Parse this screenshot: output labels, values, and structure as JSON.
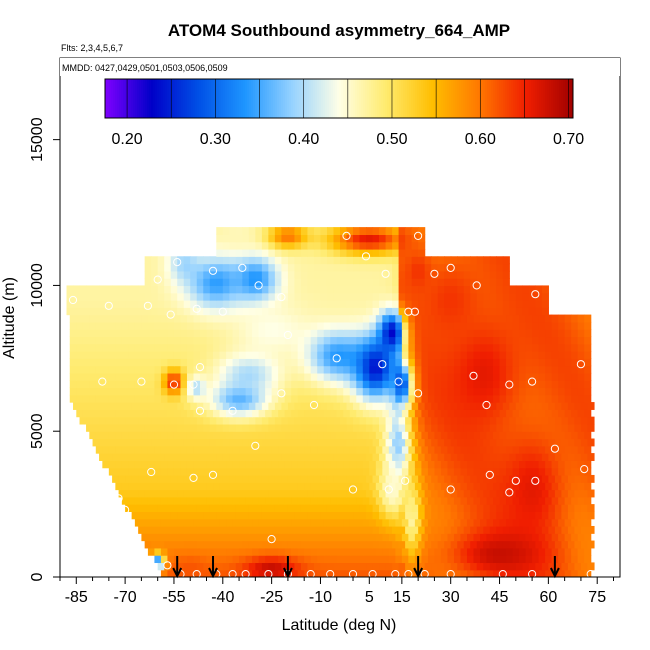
{
  "chart_data": {
    "type": "heatmap",
    "title": "ATOM4 Southbound asymmetry_664_AMP",
    "flights_label": "Flts: 2,3,4,5,6,7",
    "mmdd_label": "MMDD: 0427,0429,0501,0503,0506,0509",
    "xlabel": "Latitude (deg N)",
    "ylabel": "Altitude (m)",
    "xlim": [
      -90,
      82
    ],
    "ylim": [
      0,
      17800
    ],
    "x_ticks": [
      -85,
      -70,
      -55,
      -40,
      -25,
      -10,
      5,
      15,
      30,
      45,
      60,
      75
    ],
    "x_tick_labels": [
      "-85",
      "-70",
      "-55",
      "-40",
      "-25",
      "-10",
      "5",
      "15",
      "30",
      "45",
      "60",
      "75"
    ],
    "y_ticks": [
      0,
      5000,
      10000,
      15000
    ],
    "y_tick_labels": [
      "0",
      "5000",
      "10000",
      "15000"
    ],
    "colorbar": {
      "min": 0.175,
      "max": 0.705,
      "ticks": [
        0.2,
        0.3,
        0.4,
        0.5,
        0.6,
        0.7
      ],
      "tick_labels": [
        "0.20",
        "0.30",
        "0.40",
        "0.50",
        "0.60",
        "0.70"
      ],
      "colors": [
        "#7f00ff",
        "#0000c8",
        "#0050e6",
        "#1e96ff",
        "#96d2ff",
        "#ffffe6",
        "#ffeb6e",
        "#ffbe00",
        "#ff7800",
        "#f01e00",
        "#a00000"
      ]
    },
    "arrow_latitudes": [
      -54,
      -43,
      -20,
      20,
      62
    ],
    "field_features": [
      {
        "lat": -52,
        "alt": 10800,
        "value": 0.4,
        "radius_lat": 5,
        "radius_alt": 700
      },
      {
        "lat": -42,
        "alt": 10100,
        "value": 0.34,
        "radius_lat": 9,
        "radius_alt": 900
      },
      {
        "lat": -30,
        "alt": 10200,
        "value": 0.33,
        "radius_lat": 7,
        "radius_alt": 800
      },
      {
        "lat": -35,
        "alt": 11800,
        "value": 0.46,
        "radius_lat": 6,
        "radius_alt": 500
      },
      {
        "lat": -20,
        "alt": 11700,
        "value": 0.6,
        "radius_lat": 6,
        "radius_alt": 400
      },
      {
        "lat": 5,
        "alt": 11600,
        "value": 0.66,
        "radius_lat": 12,
        "radius_alt": 500
      },
      {
        "lat": -25,
        "alt": 8500,
        "value": 0.44,
        "radius_lat": 12,
        "radius_alt": 900
      },
      {
        "lat": -32,
        "alt": 7000,
        "value": 0.4,
        "radius_lat": 10,
        "radius_alt": 700
      },
      {
        "lat": -35,
        "alt": 6100,
        "value": 0.36,
        "radius_lat": 9,
        "radius_alt": 600
      },
      {
        "lat": -55,
        "alt": 6700,
        "value": 0.65,
        "radius_lat": 3,
        "radius_alt": 400
      },
      {
        "lat": -48,
        "alt": 6500,
        "value": 0.4,
        "radius_lat": 3,
        "radius_alt": 400
      },
      {
        "lat": -5,
        "alt": 7600,
        "value": 0.34,
        "radius_lat": 9,
        "radius_alt": 900
      },
      {
        "lat": 7,
        "alt": 7200,
        "value": 0.24,
        "radius_lat": 7,
        "radius_alt": 1100
      },
      {
        "lat": 12,
        "alt": 8400,
        "value": 0.22,
        "radius_lat": 4,
        "radius_alt": 700
      },
      {
        "lat": 15,
        "alt": 6600,
        "value": 0.25,
        "radius_lat": 3,
        "radius_alt": 800
      },
      {
        "lat": 14,
        "alt": 4500,
        "value": 0.38,
        "radius_lat": 4,
        "radius_alt": 1500
      },
      {
        "lat": 12,
        "alt": 3000,
        "value": 0.45,
        "radius_lat": 4,
        "radius_alt": 900
      },
      {
        "lat": 18,
        "alt": 2000,
        "value": 0.47,
        "radius_lat": 3,
        "radius_alt": 1400
      },
      {
        "lat": -60,
        "alt": 500,
        "value": 0.3,
        "radius_lat": 2,
        "radius_alt": 300
      },
      {
        "lat": -50,
        "alt": 300,
        "value": 0.62,
        "radius_lat": 5,
        "radius_alt": 400
      },
      {
        "lat": -25,
        "alt": 300,
        "value": 0.68,
        "radius_lat": 8,
        "radius_alt": 400
      },
      {
        "lat": 40,
        "alt": 7000,
        "value": 0.66,
        "radius_lat": 12,
        "radius_alt": 2000
      },
      {
        "lat": 30,
        "alt": 9500,
        "value": 0.64,
        "radius_lat": 10,
        "radius_alt": 1500
      },
      {
        "lat": 55,
        "alt": 3000,
        "value": 0.66,
        "radius_lat": 10,
        "radius_alt": 2000
      },
      {
        "lat": 45,
        "alt": 800,
        "value": 0.68,
        "radius_lat": 14,
        "radius_alt": 800
      },
      {
        "lat": 20,
        "alt": 10500,
        "value": 0.64,
        "radius_lat": 4,
        "radius_alt": 700
      }
    ],
    "observations": [
      {
        "lat": -53,
        "alt": 11300
      },
      {
        "lat": -54,
        "alt": 10800
      },
      {
        "lat": -60,
        "alt": 10200
      },
      {
        "lat": -43,
        "alt": 10500
      },
      {
        "lat": -34,
        "alt": 10600
      },
      {
        "lat": -29,
        "alt": 10000
      },
      {
        "lat": -22,
        "alt": 9600
      },
      {
        "lat": -86,
        "alt": 9500
      },
      {
        "lat": -75,
        "alt": 9300
      },
      {
        "lat": -63,
        "alt": 9300
      },
      {
        "lat": -56,
        "alt": 9000
      },
      {
        "lat": -48,
        "alt": 9200
      },
      {
        "lat": -40,
        "alt": 9100
      },
      {
        "lat": -2,
        "alt": 11700
      },
      {
        "lat": 4,
        "alt": 11000
      },
      {
        "lat": 10,
        "alt": 10400
      },
      {
        "lat": 20,
        "alt": 11700
      },
      {
        "lat": 25,
        "alt": 10400
      },
      {
        "lat": 30,
        "alt": 10600
      },
      {
        "lat": 38,
        "alt": 10000
      },
      {
        "lat": 56,
        "alt": 9700
      },
      {
        "lat": 19,
        "alt": 9100
      },
      {
        "lat": 17,
        "alt": 9100
      },
      {
        "lat": -20,
        "alt": 8300
      },
      {
        "lat": -5,
        "alt": 7500
      },
      {
        "lat": 9,
        "alt": 7300
      },
      {
        "lat": 14,
        "alt": 6700
      },
      {
        "lat": 20,
        "alt": 6300
      },
      {
        "lat": -47,
        "alt": 7200
      },
      {
        "lat": -55,
        "alt": 6600
      },
      {
        "lat": -49,
        "alt": 6600
      },
      {
        "lat": -77,
        "alt": 6700
      },
      {
        "lat": -65,
        "alt": 6700
      },
      {
        "lat": -22,
        "alt": 6300
      },
      {
        "lat": -37,
        "alt": 5700
      },
      {
        "lat": -12,
        "alt": 5900
      },
      {
        "lat": -47,
        "alt": 5700
      },
      {
        "lat": 37,
        "alt": 6900
      },
      {
        "lat": 48,
        "alt": 6600
      },
      {
        "lat": 55,
        "alt": 6700
      },
      {
        "lat": 70,
        "alt": 7300
      },
      {
        "lat": 41,
        "alt": 5900
      },
      {
        "lat": -88,
        "alt": 4400
      },
      {
        "lat": -30,
        "alt": 4500
      },
      {
        "lat": -43,
        "alt": 3500
      },
      {
        "lat": -49,
        "alt": 3400
      },
      {
        "lat": -62,
        "alt": 3600
      },
      {
        "lat": 16,
        "alt": 3300
      },
      {
        "lat": 42,
        "alt": 3500
      },
      {
        "lat": 50,
        "alt": 3300
      },
      {
        "lat": 56,
        "alt": 3300
      },
      {
        "lat": 62,
        "alt": 4400
      },
      {
        "lat": 71,
        "alt": 3700
      },
      {
        "lat": 0,
        "alt": 3000
      },
      {
        "lat": 11,
        "alt": 3000
      },
      {
        "lat": 30,
        "alt": 3000
      },
      {
        "lat": 48,
        "alt": 2900
      },
      {
        "lat": -72,
        "alt": 2700
      },
      {
        "lat": -70,
        "alt": 2300
      },
      {
        "lat": -72,
        "alt": 1800
      },
      {
        "lat": -25,
        "alt": 1300
      },
      {
        "lat": -57,
        "alt": 400
      },
      {
        "lat": -53,
        "alt": 100
      },
      {
        "lat": -48,
        "alt": 100
      },
      {
        "lat": -42,
        "alt": 100
      },
      {
        "lat": -37,
        "alt": 100
      },
      {
        "lat": -33,
        "alt": 100
      },
      {
        "lat": -26,
        "alt": 100
      },
      {
        "lat": -20,
        "alt": 100
      },
      {
        "lat": -13,
        "alt": 100
      },
      {
        "lat": -7,
        "alt": 100
      },
      {
        "lat": 0,
        "alt": 100
      },
      {
        "lat": 6,
        "alt": 100
      },
      {
        "lat": 13,
        "alt": 100
      },
      {
        "lat": 17,
        "alt": 100
      },
      {
        "lat": 22,
        "alt": 100
      },
      {
        "lat": 30,
        "alt": 100
      },
      {
        "lat": 46,
        "alt": 100
      },
      {
        "lat": 55,
        "alt": 100
      },
      {
        "lat": 73,
        "alt": 100
      }
    ]
  }
}
